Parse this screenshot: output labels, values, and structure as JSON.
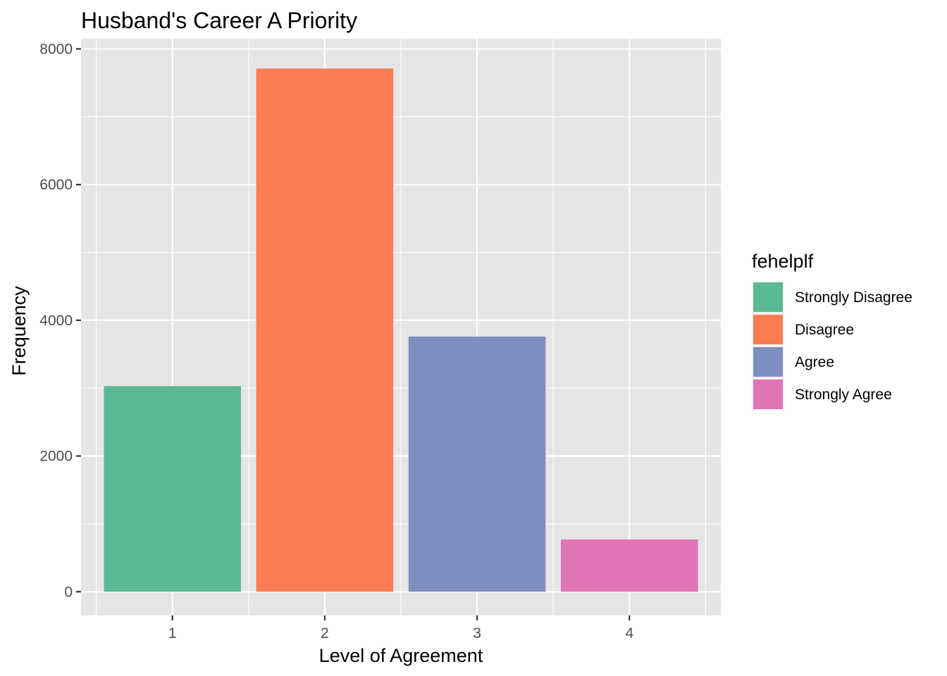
{
  "chart_data": {
    "type": "bar",
    "title": "Husband's Career A Priority",
    "xlabel": "Level of Agreement",
    "ylabel": "Frequency",
    "categories": [
      "1",
      "2",
      "3",
      "4"
    ],
    "values": [
      3030,
      7710,
      3760,
      770
    ],
    "fill_by_category": [
      "Strongly Disagree",
      "Disagree",
      "Agree",
      "Strongly Agree"
    ],
    "ylim": [
      -350,
      8150
    ],
    "yticks": [
      0,
      2000,
      4000,
      6000,
      8000
    ],
    "y_tick_labels": [
      "0",
      "2000",
      "4000",
      "6000",
      "8000"
    ],
    "grid": true,
    "legend": {
      "title": "fehelplf",
      "position": "right",
      "entries": [
        {
          "label": "Strongly Disagree",
          "color": "#5BBA93"
        },
        {
          "label": "Disagree",
          "color": "#F97C52"
        },
        {
          "label": "Agree",
          "color": "#7E8FBF"
        },
        {
          "label": "Strongly Agree",
          "color": "#E075B6"
        }
      ]
    },
    "colors": {
      "panel_background": "#E5E5E5",
      "grid_line": "#FFFFFF"
    }
  }
}
